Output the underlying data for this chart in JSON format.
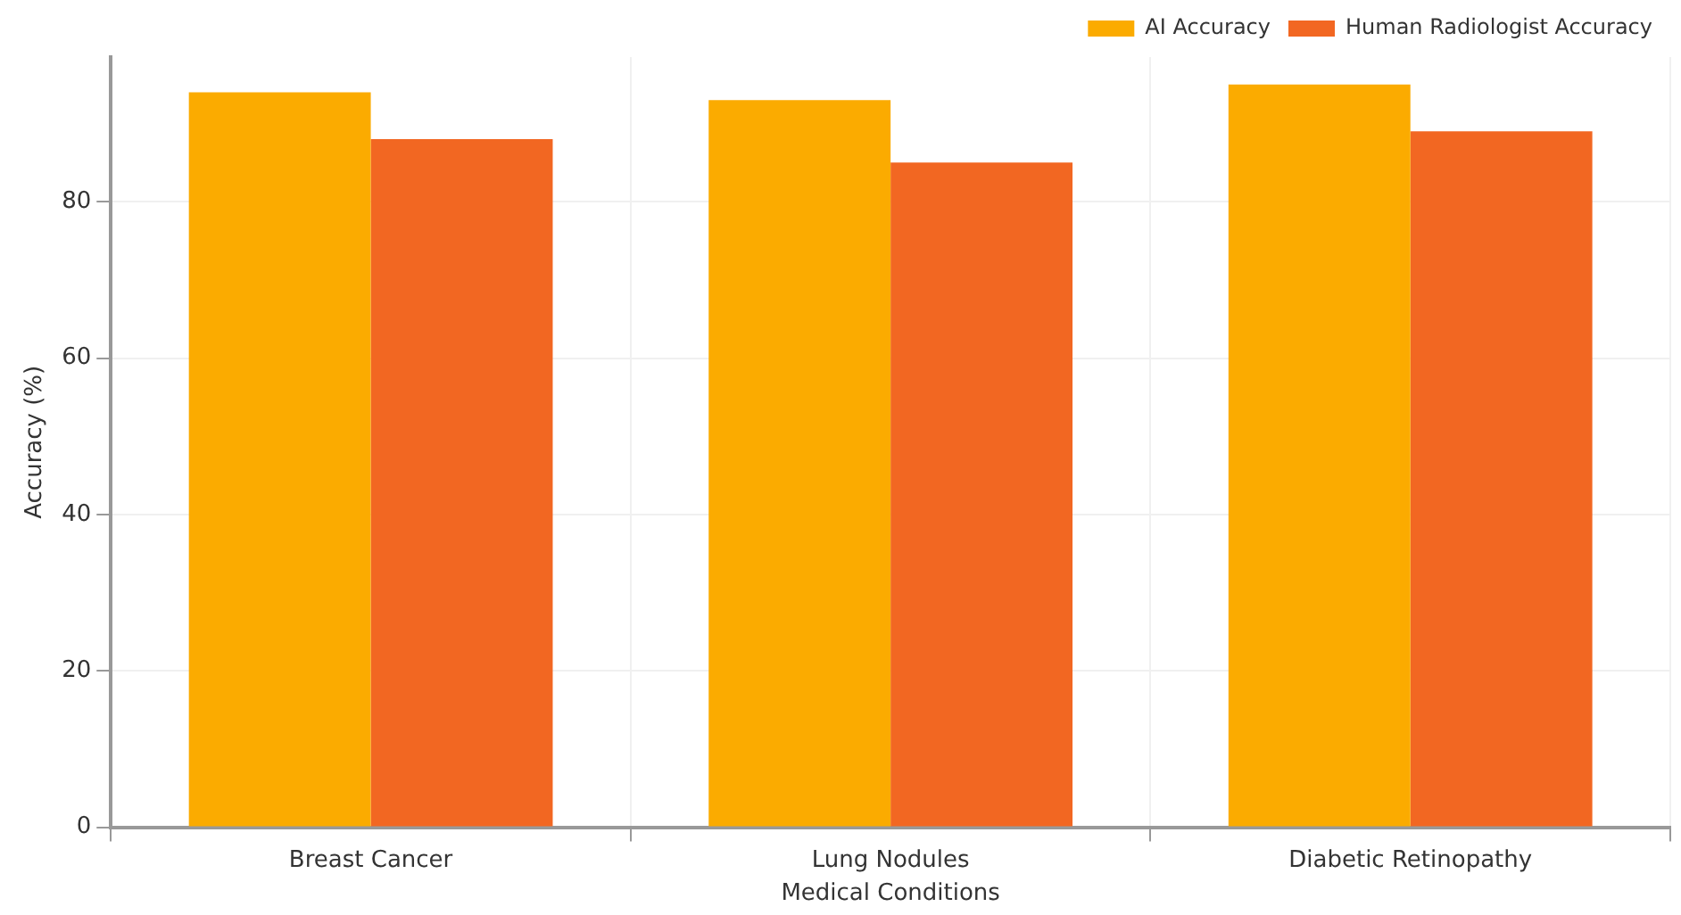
{
  "chart_data": {
    "type": "bar",
    "xlabel": "Medical Conditions",
    "ylabel": "Accuracy (%)",
    "categories": [
      "Breast Cancer",
      "Lung Nodules",
      "Diabetic Retinopathy"
    ],
    "series": [
      {
        "name": "AI Accuracy",
        "color": "#fbab00",
        "values": [
          94,
          93,
          95
        ]
      },
      {
        "name": "Human Radiologist Accuracy",
        "color": "#f26722",
        "values": [
          88,
          85,
          89
        ]
      }
    ],
    "ylim": [
      0,
      98.5
    ],
    "yticks": [
      0,
      20,
      40,
      60,
      80
    ],
    "grid": true,
    "legend": "top right"
  }
}
